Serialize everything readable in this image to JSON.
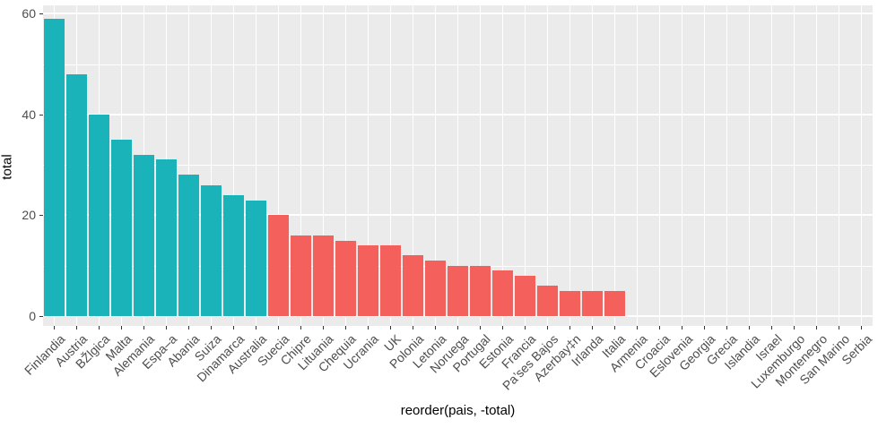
{
  "chart_data": {
    "type": "bar",
    "title": "",
    "xlabel": "reorder(pais, -total)",
    "ylabel": "total",
    "categories": [
      "Finlandia",
      "Austria",
      "BŽlgica",
      "Malta",
      "Alemania",
      "Espa–a",
      "Abania",
      "Suiza",
      "Dinamarca",
      "Australia",
      "Suecia",
      "Chipre",
      "Lituania",
      "Chequia",
      "Ucrania",
      "UK",
      "Polonia",
      "Letonia",
      "Noruega",
      "Portugal",
      "Estonia",
      "Francia",
      "Pa’ses Bajos",
      "Azerbay‡n",
      "Irlanda",
      "Italia",
      "Armenia",
      "Croacia",
      "Eslovenia",
      "Georgia",
      "Grecia",
      "Islandia",
      "Israel",
      "Luxemburgo",
      "Montenegro",
      "San Marino",
      "Serbia"
    ],
    "values": [
      59,
      48,
      40,
      35,
      32,
      31,
      28,
      26,
      24,
      23,
      20,
      16,
      16,
      15,
      14,
      14,
      12,
      11,
      10,
      10,
      9,
      8,
      6,
      5,
      5,
      5,
      0,
      0,
      0,
      0,
      0,
      0,
      0,
      0,
      0,
      0,
      0
    ],
    "fills": [
      "teal",
      "teal",
      "teal",
      "teal",
      "teal",
      "teal",
      "teal",
      "teal",
      "teal",
      "teal",
      "red",
      "red",
      "red",
      "red",
      "red",
      "red",
      "red",
      "red",
      "red",
      "red",
      "red",
      "red",
      "red",
      "red",
      "red",
      "red",
      null,
      null,
      null,
      null,
      null,
      null,
      null,
      null,
      null,
      null,
      null
    ],
    "palette": {
      "teal": "#19B3B9",
      "red": "#F4605C"
    },
    "y_ticks": [
      0,
      20,
      40,
      60
    ],
    "y_minor_ticks": [
      10,
      30,
      50
    ],
    "ylim": [
      -2,
      61.6
    ],
    "grid": true,
    "legend": "none",
    "colors": {
      "panel_bg": "#EBEBEB",
      "grid": "#FFFFFF",
      "axis_text": "#4D4D4D",
      "tick_mark": "#333333",
      "axis_title": "#000000"
    }
  }
}
